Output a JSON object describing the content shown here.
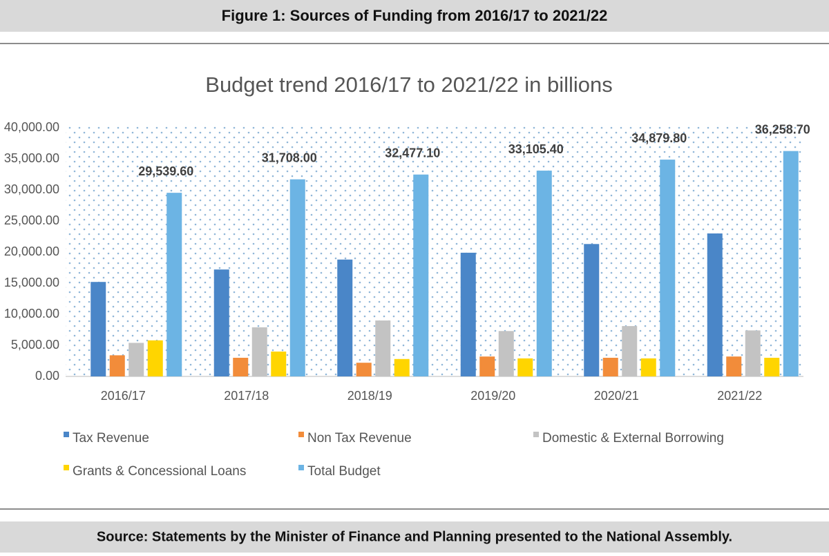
{
  "header": {
    "title": "Figure 1: Sources of Funding from 2016/17 to 2021/22"
  },
  "chart_data": {
    "type": "bar",
    "title": "Budget trend 2016/17 to 2021/22 in billions",
    "categories": [
      "2016/17",
      "2017/18",
      "2018/19",
      "2019/20",
      "2020/21",
      "2021/22"
    ],
    "series": [
      {
        "name": "Tax Revenue",
        "color": "#4a86c8",
        "values": [
          15200,
          17200,
          18800,
          19900,
          21300,
          23000
        ]
      },
      {
        "name": "Non Tax Revenue",
        "color": "#f28c3a",
        "values": [
          3400,
          3000,
          2200,
          3200,
          3000,
          3200
        ]
      },
      {
        "name": "Domestic & External Borrowing",
        "color": "#c3c3c3",
        "values": [
          5400,
          7900,
          9000,
          7300,
          8100,
          7400
        ]
      },
      {
        "name": "Grants & Concessional Loans",
        "color": "#ffd500",
        "values": [
          5800,
          4000,
          2800,
          2900,
          2900,
          3000
        ]
      },
      {
        "name": "Total Budget",
        "color": "#6cb4e4",
        "values": [
          29539.6,
          31708,
          32477.1,
          33105.4,
          34879.8,
          36258.7
        ],
        "value_labels": [
          "29,539.60",
          "31,708.00",
          "32,477.10",
          "33,105.40",
          "34,879.80",
          "36,258.70"
        ]
      }
    ],
    "ylim": [
      0,
      40000
    ],
    "yticks": [
      {
        "value": 0,
        "label": "0.00"
      },
      {
        "value": 5000,
        "label": "5,000.00"
      },
      {
        "value": 10000,
        "label": "10,000.00"
      },
      {
        "value": 15000,
        "label": "15,000.00"
      },
      {
        "value": 20000,
        "label": "20,000.00"
      },
      {
        "value": 25000,
        "label": "25,000.00"
      },
      {
        "value": 30000,
        "label": "30,000.00"
      },
      {
        "value": 35000,
        "label": "35,000.00"
      },
      {
        "value": 40000,
        "label": "40,000.00"
      }
    ],
    "grid": false
  },
  "footer": {
    "source": "Source: Statements by the Minister of Finance and Planning presented to the National Assembly."
  }
}
